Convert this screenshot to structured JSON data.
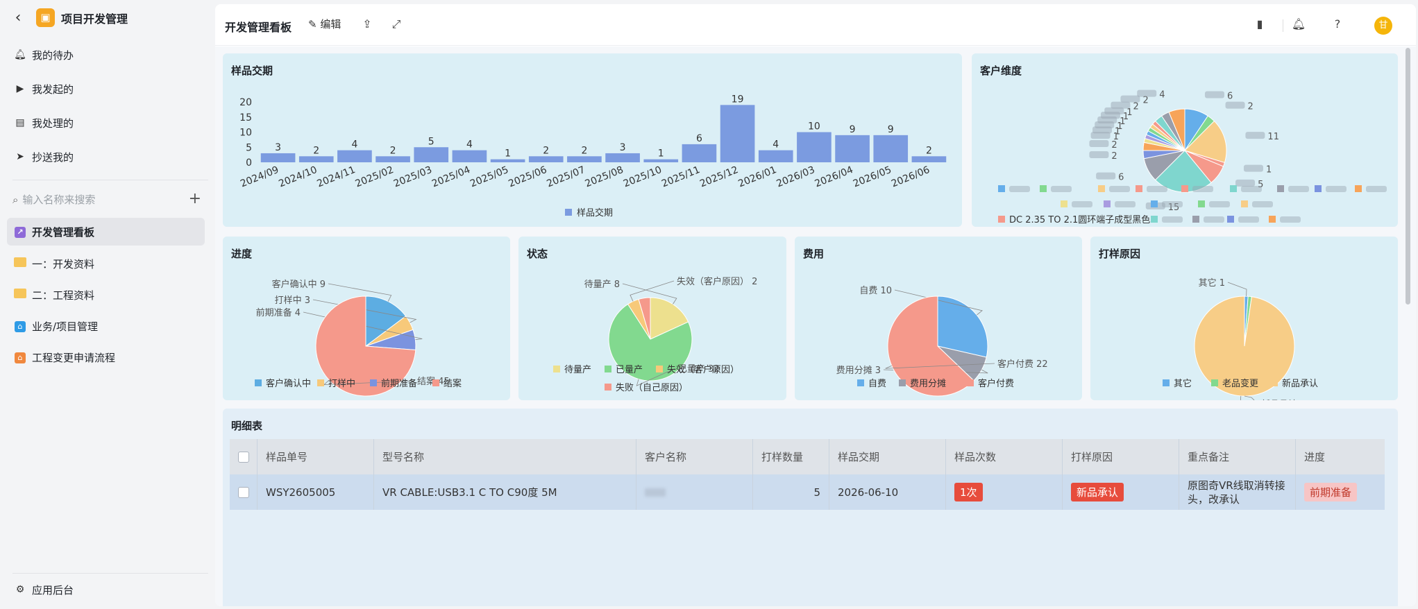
{
  "sidebar": {
    "app_title": "项目开发管理",
    "items": [
      {
        "label": "我的待办",
        "icon": "bell-icon"
      },
      {
        "label": "我发起的",
        "icon": "play-circle-icon"
      },
      {
        "label": "我处理的",
        "icon": "inbox-icon"
      },
      {
        "label": "抄送我的",
        "icon": "send-icon"
      }
    ],
    "search_placeholder": "输入名称来搜索",
    "nav": [
      {
        "label": "开发管理看板",
        "icon": "dashboard-icon",
        "active": true
      },
      {
        "label": "一：开发资料",
        "icon": "folder-icon"
      },
      {
        "label": "二：工程资料",
        "icon": "folder-icon"
      },
      {
        "label": "业务/项目管理",
        "icon": "app-icon"
      },
      {
        "label": "工程变更申请流程",
        "icon": "app-icon"
      }
    ],
    "footer_label": "应用后台"
  },
  "topbar": {
    "title": "开发管理看板",
    "edit_label": "编辑",
    "avatar_text": "甘"
  },
  "cards": {
    "delivery": {
      "title": "样品交期"
    },
    "customer": {
      "title": "客户维度"
    },
    "progress": {
      "title": "进度"
    },
    "status": {
      "title": "状态"
    },
    "cost": {
      "title": "费用"
    },
    "reason": {
      "title": "打样原因"
    }
  },
  "chart_data": [
    {
      "type": "bar",
      "title": "样品交期",
      "categories": [
        "2024/09",
        "2024/10",
        "2024/11",
        "2025/02",
        "2025/03",
        "2025/04",
        "2025/05",
        "2025/06",
        "2025/07",
        "2025/08",
        "2025/10",
        "2025/11",
        "2025/12",
        "2026/01",
        "2026/03",
        "2026/04",
        "2026/05",
        "2026/06"
      ],
      "series": [
        {
          "name": "样品交期",
          "values": [
            3,
            2,
            4,
            2,
            5,
            4,
            1,
            2,
            2,
            3,
            1,
            6,
            19,
            4,
            10,
            9,
            9,
            2
          ]
        }
      ],
      "yticks": [
        0,
        5,
        10,
        15,
        20
      ],
      "ylim": [
        0,
        20
      ],
      "color": "#7b9be0",
      "legend": "bottom"
    },
    {
      "type": "pie",
      "title": "进度",
      "slices": [
        {
          "label": "客户确认中",
          "value": 9,
          "color": "#5dade2"
        },
        {
          "label": "打样中",
          "value": 3,
          "color": "#f7c97a"
        },
        {
          "label": "前期准备",
          "value": 4,
          "color": "#7b93df"
        },
        {
          "label": "结案",
          "value": 45,
          "color": "#f5998b"
        }
      ],
      "legend": "bottom"
    },
    {
      "type": "pie",
      "title": "状态",
      "slices": [
        {
          "label": "待量产",
          "value": 8,
          "color": "#ede08e"
        },
        {
          "label": "已量产",
          "value": 32,
          "color": "#82d98f"
        },
        {
          "label": "失效（客户原因）",
          "value": 2,
          "color": "#f7c97a"
        },
        {
          "label": "失败（自己原因）",
          "value": 2,
          "color": "#f5998b"
        }
      ],
      "legend": "bottom"
    },
    {
      "type": "pie",
      "title": "费用",
      "slices": [
        {
          "label": "自费",
          "value": 10,
          "color": "#65aeea"
        },
        {
          "label": "费用分摊",
          "value": 3,
          "color": "#9a9eab"
        },
        {
          "label": "客户付费",
          "value": 22,
          "color": "#f5998b"
        }
      ],
      "legend": "bottom"
    },
    {
      "type": "pie",
      "title": "打样原因",
      "slices": [
        {
          "label": "其它",
          "value": 1,
          "color": "#65aeea"
        },
        {
          "label": "老品变更",
          "value": 1,
          "color": "#82d98f"
        },
        {
          "label": "新品承认",
          "value": 85,
          "color": "#f7cd87"
        }
      ],
      "legend": "bottom"
    },
    {
      "type": "pie",
      "title": "客户维度",
      "slices": [
        {
          "value": 6,
          "color": "#65aeea"
        },
        {
          "value": 2,
          "color": "#82d98f"
        },
        {
          "value": 11,
          "color": "#f7cd87"
        },
        {
          "value": 1,
          "color": "#f5998b"
        },
        {
          "value": 5,
          "color": "#f5998b"
        },
        {
          "value": 15,
          "color": "#7fd6ce"
        },
        {
          "value": 6,
          "color": "#9a9eab"
        },
        {
          "value": 2,
          "color": "#7b93df"
        },
        {
          "value": 2,
          "color": "#f7a45a"
        },
        {
          "value": 1,
          "color": "#ede08e"
        },
        {
          "value": 1,
          "color": "#a99ce0"
        },
        {
          "value": 1,
          "color": "#65aeea"
        },
        {
          "value": 1,
          "color": "#82d98f"
        },
        {
          "value": 1,
          "color": "#f7cd87"
        },
        {
          "value": 1,
          "color": "#f5998b"
        },
        {
          "value": 2,
          "color": "#7fd6ce"
        },
        {
          "value": 2,
          "color": "#9a9eab"
        },
        {
          "value": 4,
          "color": "#f7a45a"
        }
      ],
      "legend_labels": [
        "DC 2.35 TO 2.1圆环端子成型黑色"
      ],
      "legend": "bottom"
    }
  ],
  "table": {
    "title": "明细表",
    "columns": [
      "样品单号",
      "型号名称",
      "客户名称",
      "打样数量",
      "样品交期",
      "样品次数",
      "打样原因",
      "重点备注",
      "进度"
    ],
    "rows": [
      {
        "sample_no": "WSY2605005",
        "model": "VR CABLE:USB3.1 C TO C90度 5M",
        "customer": "",
        "qty": "5",
        "delivery": "2026-06-10",
        "times": "1次",
        "reason": "新品承认",
        "note": "原图奇VR线取消转接头，改承认",
        "progress": "前期准备"
      }
    ]
  }
}
